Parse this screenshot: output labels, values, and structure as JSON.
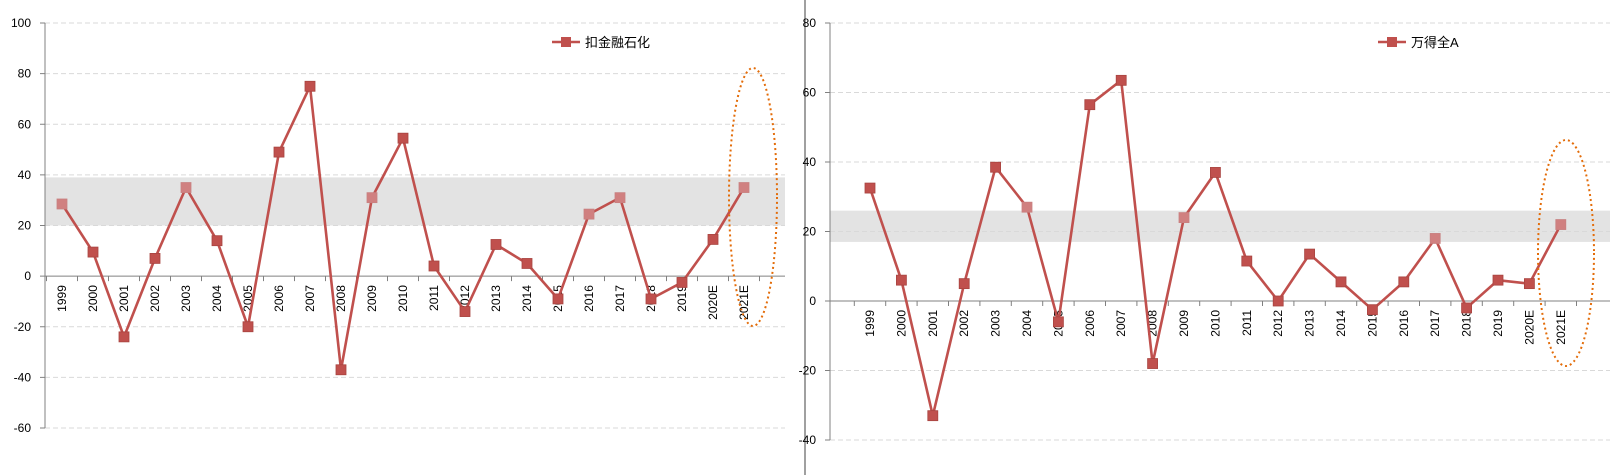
{
  "colors": {
    "line": "#C0504D",
    "marker": "#C0504D",
    "marker_light": "#D08080",
    "band": "#E3E3E3",
    "grid": "#D9D9D9",
    "axis": "#808080",
    "ellipse": "#E36C09",
    "divider": "#808080"
  },
  "chart_data": [
    {
      "type": "line",
      "categories": [
        "1999",
        "2000",
        "2001",
        "2002",
        "2003",
        "2004",
        "2005",
        "2006",
        "2007",
        "2008",
        "2009",
        "2010",
        "2011",
        "2012",
        "2013",
        "2014",
        "2015",
        "2016",
        "2017",
        "2018",
        "2019",
        "2020E",
        "2021E"
      ],
      "series": [
        {
          "name": "扣金融石化",
          "values": [
            28.5,
            9.5,
            -24,
            7,
            35,
            14,
            -20,
            49,
            75,
            -37,
            31,
            54.5,
            4,
            -14,
            12.5,
            5,
            -9,
            24.5,
            31,
            -9,
            -2.5,
            14.5,
            35
          ],
          "light_markers": [
            0,
            4,
            10,
            17,
            18,
            22
          ]
        }
      ],
      "ylim": [
        -60,
        100
      ],
      "yticks": [
        -60,
        -40,
        -20,
        0,
        20,
        40,
        60,
        80,
        100
      ],
      "highlight_band": [
        20,
        39
      ],
      "highlighted_categories": [
        "2021E"
      ],
      "grid": true,
      "legend_position": "top-right"
    },
    {
      "type": "line",
      "categories": [
        "1999",
        "2000",
        "2001",
        "2002",
        "2003",
        "2004",
        "2005",
        "2006",
        "2007",
        "2008",
        "2009",
        "2010",
        "2011",
        "2012",
        "2013",
        "2014",
        "2015",
        "2016",
        "2017",
        "2018",
        "2019",
        "2020E",
        "2021E"
      ],
      "series": [
        {
          "name": "万得全A",
          "values": [
            32.5,
            6,
            -33,
            5,
            38.5,
            27,
            -6,
            56.5,
            63.5,
            -18,
            24,
            37,
            11.5,
            0,
            13.5,
            5.5,
            -2.5,
            5.5,
            18,
            -2,
            6,
            5,
            22
          ],
          "light_markers": [
            5,
            10,
            18,
            22
          ]
        }
      ],
      "ylim": [
        -40,
        80
      ],
      "yticks": [
        -40,
        -20,
        0,
        20,
        40,
        60,
        80
      ],
      "highlight_band": [
        17,
        26
      ],
      "highlighted_categories": [
        "2021E"
      ],
      "grid": true,
      "legend_position": "top-right"
    }
  ]
}
